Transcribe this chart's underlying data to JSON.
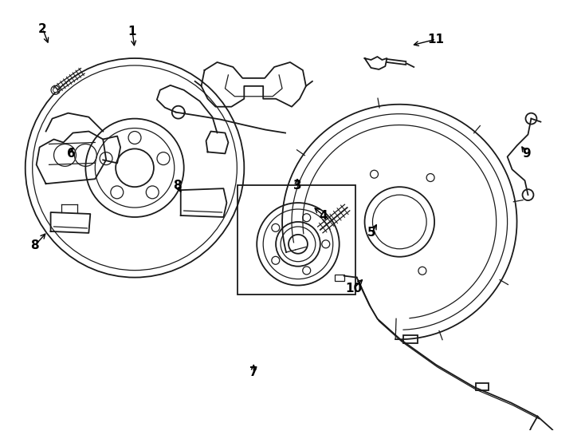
{
  "bg_color": "#ffffff",
  "line_color": "#1a1a1a",
  "fig_width": 7.34,
  "fig_height": 5.4,
  "dpi": 100
}
